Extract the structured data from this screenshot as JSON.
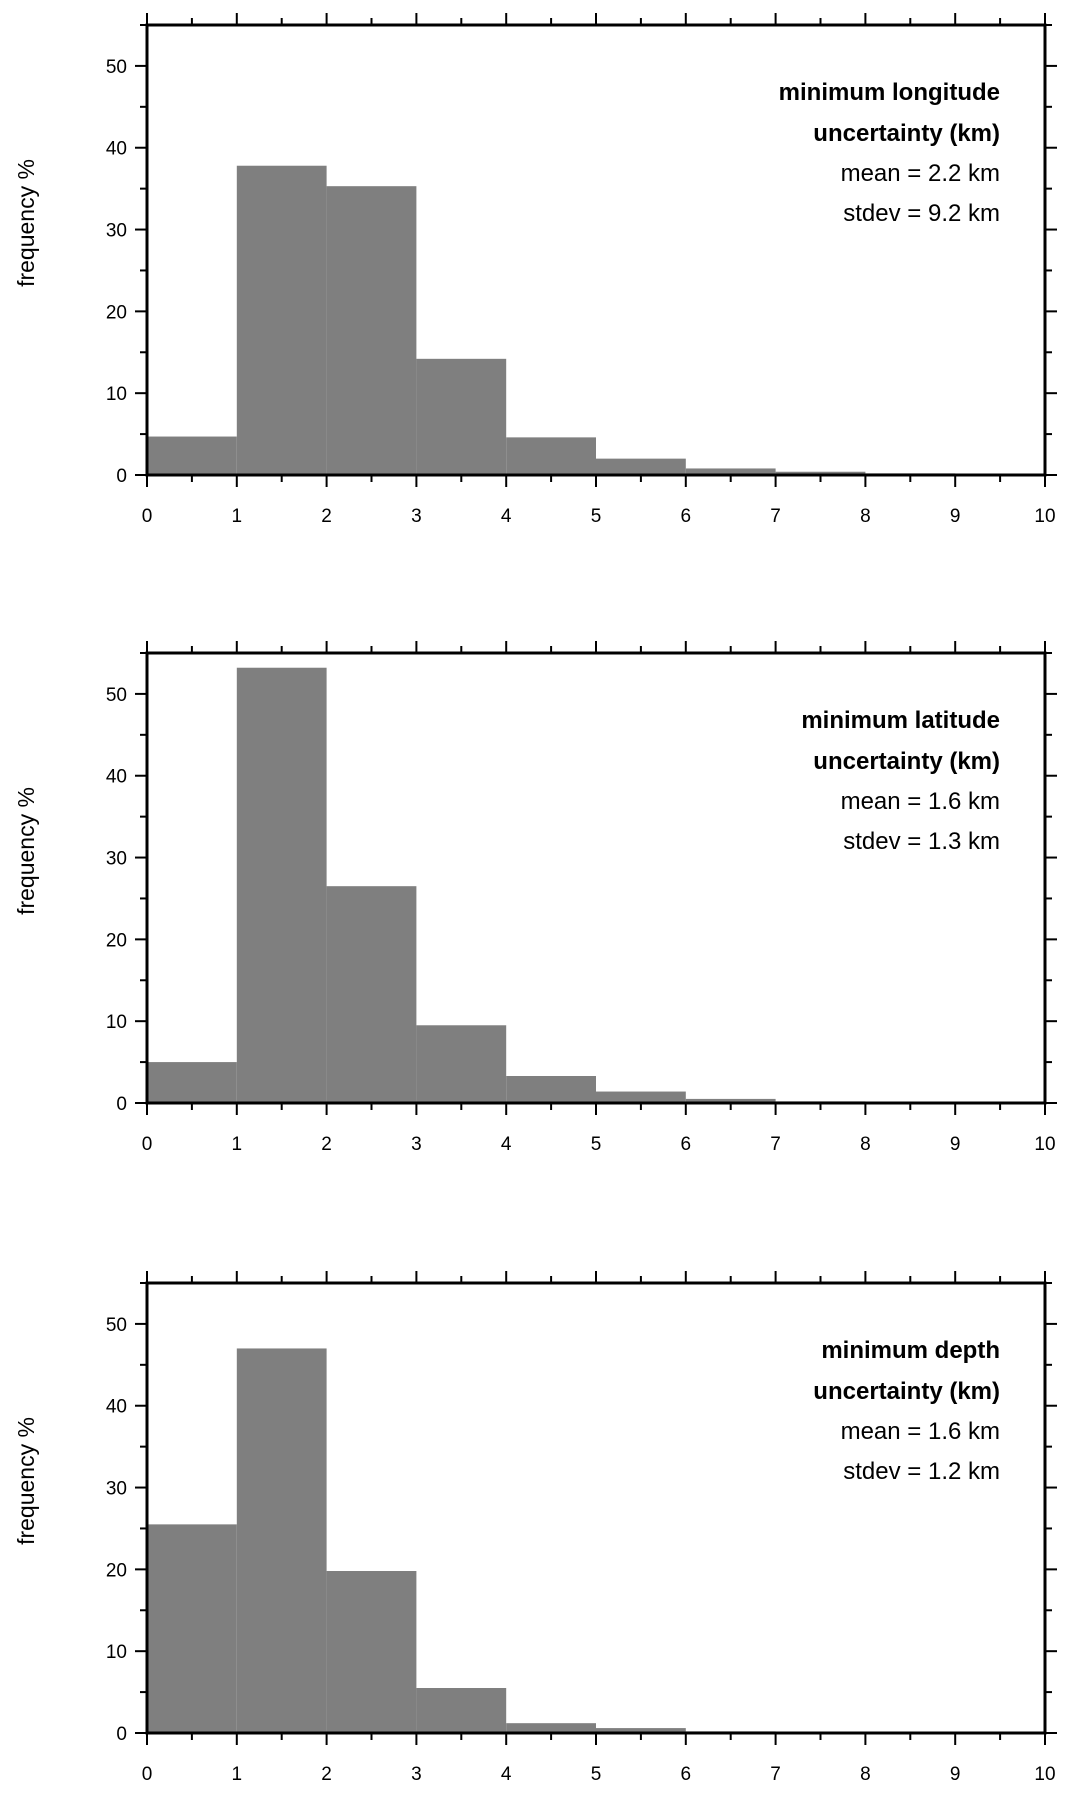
{
  "chart_data": [
    {
      "type": "bar",
      "x_bin_edges": [
        0,
        1,
        2,
        3,
        4,
        5,
        6,
        7,
        8,
        9,
        10
      ],
      "values": [
        4.7,
        37.8,
        35.3,
        14.2,
        4.6,
        2.0,
        0.8,
        0.4,
        0.2,
        0.1
      ],
      "xlim": [
        0,
        10
      ],
      "ylim": [
        0,
        55
      ],
      "xticks": [
        0,
        1,
        2,
        3,
        4,
        5,
        6,
        7,
        8,
        9,
        10
      ],
      "yticks": [
        0,
        10,
        20,
        30,
        40,
        50
      ],
      "ylabel": "frequency %",
      "annotation": {
        "title_line1": "minimum longitude",
        "title_line2": "uncertainty (km)",
        "mean": "mean = 2.2 km",
        "stdev": "stdev = 9.2 km"
      },
      "bar_color": "#7f7f7f"
    },
    {
      "type": "bar",
      "x_bin_edges": [
        0,
        1,
        2,
        3,
        4,
        5,
        6,
        7,
        8,
        9,
        10
      ],
      "values": [
        5.0,
        53.2,
        26.5,
        9.5,
        3.3,
        1.4,
        0.5,
        0.2,
        0.1,
        0.1
      ],
      "xlim": [
        0,
        10
      ],
      "ylim": [
        0,
        55
      ],
      "xticks": [
        0,
        1,
        2,
        3,
        4,
        5,
        6,
        7,
        8,
        9,
        10
      ],
      "yticks": [
        0,
        10,
        20,
        30,
        40,
        50
      ],
      "ylabel": "frequency %",
      "annotation": {
        "title_line1": "minimum latitude",
        "title_line2": "uncertainty (km)",
        "mean": "mean = 1.6 km",
        "stdev": "stdev = 1.3 km"
      },
      "bar_color": "#7f7f7f"
    },
    {
      "type": "bar",
      "x_bin_edges": [
        0,
        1,
        2,
        3,
        4,
        5,
        6,
        7,
        8,
        9,
        10
      ],
      "values": [
        25.5,
        47.0,
        19.8,
        5.5,
        1.2,
        0.6,
        0.2,
        0.1,
        0.1,
        0.1
      ],
      "xlim": [
        0,
        10
      ],
      "ylim": [
        0,
        55
      ],
      "xticks": [
        0,
        1,
        2,
        3,
        4,
        5,
        6,
        7,
        8,
        9,
        10
      ],
      "yticks": [
        0,
        10,
        20,
        30,
        40,
        50
      ],
      "ylabel": "frequency %",
      "annotation": {
        "title_line1": "minimum depth",
        "title_line2": "uncertainty (km)",
        "mean": "mean = 1.6 km",
        "stdev": "stdev = 1.2 km"
      },
      "bar_color": "#7f7f7f"
    }
  ]
}
